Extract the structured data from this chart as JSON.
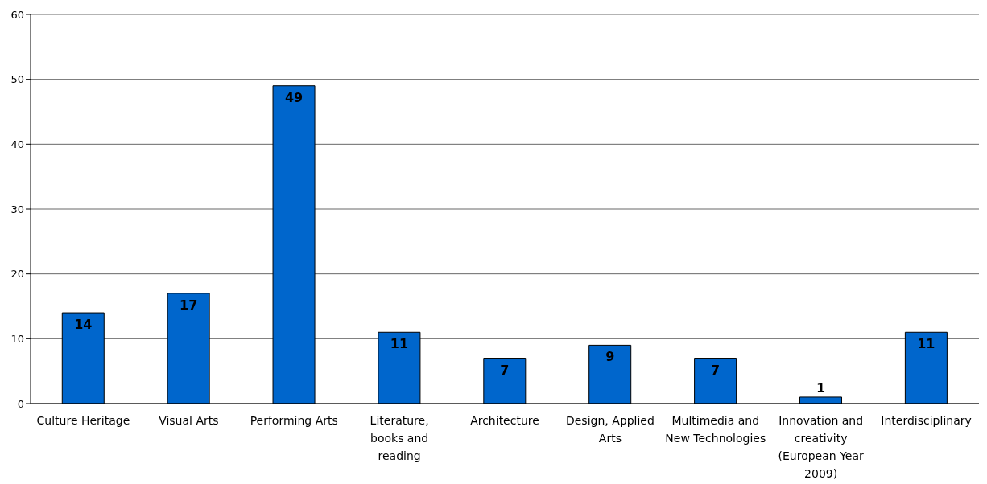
{
  "chart_data": {
    "type": "bar",
    "categories": [
      "Culture Heritage",
      "Visual Arts",
      "Performing Arts",
      "Literature, books and reading",
      "Architecture",
      "Design, Applied Arts",
      "Multimedia and New Technologies",
      "Innovation and creativity (European Year 2009)",
      "Interdisciplinary"
    ],
    "values": [
      14,
      17,
      49,
      11,
      7,
      9,
      7,
      1,
      11
    ],
    "color": "#0066cc",
    "ylim": [
      0,
      60
    ],
    "yticks": [
      0,
      10,
      20,
      30,
      40,
      50,
      60
    ],
    "grid": "y",
    "data_labels": true
  }
}
